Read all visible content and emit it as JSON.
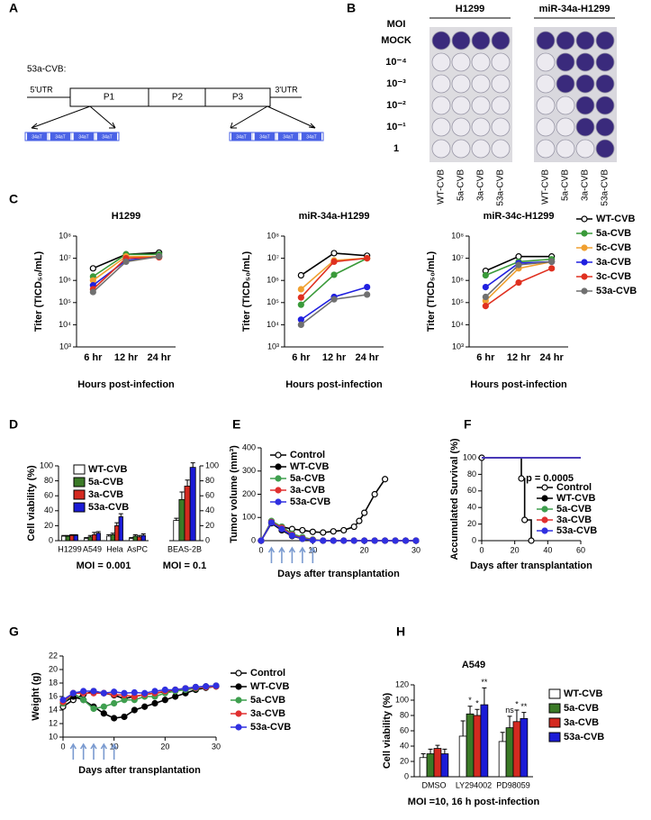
{
  "panel_labels": [
    "A",
    "B",
    "C",
    "D",
    "E",
    "F",
    "G",
    "H"
  ],
  "diagram": {
    "name": "53a-CVB:",
    "utr5": "5'UTR",
    "regions": [
      "P1",
      "P2",
      "P3"
    ],
    "utr3": "3'UTR",
    "cassettes": [
      [
        "34aT",
        "34aT",
        "34aT",
        "34aT"
      ],
      [
        "34aT",
        "34aT",
        "34aT",
        "34aT"
      ]
    ]
  },
  "plates": {
    "row_header": "MOI",
    "rows": [
      "MOCK",
      "10⁻⁴",
      "10⁻³",
      "10⁻²",
      "10⁻¹",
      "1"
    ],
    "panels": [
      {
        "title": "H1299",
        "columns": [
          "WT-CVB",
          "5a-CVB",
          "3a-CVB",
          "53a-CVB"
        ],
        "stained": [
          [
            1,
            1,
            1,
            1
          ],
          [
            0,
            0,
            0,
            0
          ],
          [
            0,
            0,
            0,
            0
          ],
          [
            0,
            0,
            0,
            0
          ],
          [
            0,
            0,
            0,
            0
          ],
          [
            0,
            0,
            0,
            0
          ]
        ]
      },
      {
        "title": "miR-34a-H1299",
        "columns": [
          "WT-CVB",
          "5a-CVB",
          "3a-CVB",
          "53a-CVB"
        ],
        "stained": [
          [
            1,
            1,
            1,
            1
          ],
          [
            0,
            1,
            1,
            1
          ],
          [
            0,
            1,
            1,
            1
          ],
          [
            0,
            0,
            1,
            1
          ],
          [
            0,
            0,
            1,
            1
          ],
          [
            0,
            0,
            0,
            1
          ]
        ]
      }
    ]
  },
  "chart_data": [
    {
      "type": "line",
      "title": "H1299",
      "ylabel": "Titer (TICD₅₀/mL)",
      "xlabel": "Hours post-infection",
      "log": true,
      "categories": [
        "6 hr",
        "12 hr",
        "24 hr"
      ],
      "ylim": [
        1000,
        100000000
      ],
      "yticks": [
        {
          "value": 1000,
          "label": "10³"
        },
        {
          "value": 10000,
          "label": "10⁴"
        },
        {
          "value": 100000,
          "label": "10⁵"
        },
        {
          "value": 1000000,
          "label": "10⁶"
        },
        {
          "value": 10000000,
          "label": "10⁷"
        },
        {
          "value": 100000000,
          "label": "10⁸"
        }
      ],
      "series": [
        {
          "color": "#000000",
          "marker": "open",
          "values": [
            3500000,
            15000000,
            18000000
          ]
        },
        {
          "color": "#3a9a3a",
          "values": [
            1500000,
            15000000,
            15000000
          ]
        },
        {
          "color": "#f0a030",
          "values": [
            1000000,
            12000000,
            12000000
          ]
        },
        {
          "color": "#2020e0",
          "values": [
            600000,
            8000000,
            12000000
          ]
        },
        {
          "color": "#e03020",
          "values": [
            400000,
            10000000,
            11000000
          ]
        },
        {
          "color": "#707070",
          "values": [
            300000,
            7000000,
            12000000
          ]
        }
      ]
    },
    {
      "type": "line",
      "title": "miR-34a-H1299",
      "ylabel": "Titer (TICD₅₀/mL)",
      "xlabel": "Hours post-infection",
      "log": true,
      "categories": [
        "6 hr",
        "12 hr",
        "24 hr"
      ],
      "ylim": [
        1000,
        100000000
      ],
      "yticks": [
        {
          "value": 1000,
          "label": "10³"
        },
        {
          "value": 10000,
          "label": "10⁴"
        },
        {
          "value": 100000,
          "label": "10⁵"
        },
        {
          "value": 1000000,
          "label": "10⁶"
        },
        {
          "value": 10000000,
          "label": "10⁷"
        },
        {
          "value": 100000000,
          "label": "10⁸"
        }
      ],
      "series": [
        {
          "color": "#000000",
          "marker": "open",
          "values": [
            1700000,
            17000000,
            13000000
          ]
        },
        {
          "color": "#3a9a3a",
          "values": [
            80000,
            1800000,
            10000000
          ]
        },
        {
          "color": "#f0a030",
          "values": [
            400000,
            8000000,
            10000000
          ]
        },
        {
          "color": "#2020e0",
          "values": [
            17000,
            180000,
            500000
          ]
        },
        {
          "color": "#e03020",
          "values": [
            170000,
            7000000,
            10000000
          ]
        },
        {
          "color": "#707070",
          "values": [
            10000,
            140000,
            230000
          ]
        }
      ]
    },
    {
      "type": "line",
      "title": "miR-34c-H1299",
      "ylabel": "Titer (TICD₅₀/mL)",
      "xlabel": "Hours post-infection",
      "log": true,
      "categories": [
        "6 hr",
        "12 hr",
        "24 hr"
      ],
      "ylim": [
        1000,
        100000000
      ],
      "yticks": [
        {
          "value": 1000,
          "label": "10³"
        },
        {
          "value": 10000,
          "label": "10⁴"
        },
        {
          "value": 100000,
          "label": "10⁵"
        },
        {
          "value": 1000000,
          "label": "10⁶"
        },
        {
          "value": 10000000,
          "label": "10⁷"
        },
        {
          "value": 100000000,
          "label": "10⁸"
        }
      ],
      "series": [
        {
          "name": "WT-CVB",
          "color": "#000000",
          "marker": "open",
          "values": [
            2700000,
            12000000,
            12000000
          ]
        },
        {
          "name": "5a-CVB",
          "color": "#3a9a3a",
          "values": [
            1700000,
            7000000,
            9000000
          ]
        },
        {
          "name": "5c-CVB",
          "color": "#f0a030",
          "values": [
            120000,
            3500000,
            7000000
          ]
        },
        {
          "name": "3a-CVB",
          "color": "#2020e0",
          "values": [
            500000,
            6000000,
            7000000
          ]
        },
        {
          "name": "3c-CVB",
          "color": "#e03020",
          "values": [
            70000,
            800000,
            3500000
          ]
        },
        {
          "name": "53a-CVB",
          "color": "#707070",
          "values": [
            180000,
            5000000,
            7000000
          ]
        }
      ]
    },
    {
      "type": "bar",
      "ylabel": "Cell viability (%)",
      "xlabel": "MOI = 0.001",
      "categories": [
        "H1299",
        "A549",
        "Hela",
        "AsPC"
      ],
      "ylim": [
        0,
        100
      ],
      "yticks": [
        0,
        20,
        40,
        60,
        80,
        100
      ],
      "series": [
        {
          "name": "WT-CVB",
          "color": "#ffffff",
          "values": [
            6,
            3,
            6,
            3
          ],
          "errors": [
            1,
            1,
            2,
            1
          ]
        },
        {
          "name": "5a-CVB",
          "color": "#3b7a27",
          "values": [
            6,
            5,
            8,
            6
          ],
          "errors": [
            1,
            2,
            2,
            2
          ]
        },
        {
          "name": "3a-CVB",
          "color": "#d42a20",
          "values": [
            7,
            8,
            20,
            5
          ],
          "errors": [
            1,
            3,
            4,
            2
          ]
        },
        {
          "name": "53a-CVB",
          "color": "#1b1bd6",
          "values": [
            7,
            10,
            32,
            7
          ],
          "errors": [
            1,
            2,
            4,
            2
          ]
        }
      ]
    },
    {
      "type": "bar",
      "xlabel": "MOI = 0.1",
      "y_side": "right",
      "categories": [
        "BEAS-2B"
      ],
      "ylim": [
        0,
        100
      ],
      "yticks": [
        0,
        20,
        40,
        60,
        80,
        100
      ],
      "series": [
        {
          "color": "#ffffff",
          "values": [
            27
          ],
          "errors": [
            3
          ]
        },
        {
          "color": "#3b7a27",
          "values": [
            55
          ],
          "errors": [
            10
          ]
        },
        {
          "color": "#d42a20",
          "values": [
            73
          ],
          "errors": [
            8
          ]
        },
        {
          "color": "#1b1bd6",
          "values": [
            98
          ],
          "errors": [
            6
          ]
        }
      ]
    },
    {
      "type": "line",
      "ylabel": "Tumor volume (mm³)",
      "xlabel": "Days after transplantation",
      "xlim": [
        0,
        30
      ],
      "xticks": [
        0,
        10,
        20,
        30
      ],
      "ylim": [
        0,
        400
      ],
      "yticks": [
        0,
        100,
        200,
        300,
        400
      ],
      "dose_days": [
        2,
        4,
        6,
        8,
        10
      ],
      "series": [
        {
          "name": "Control",
          "color": "#000000",
          "marker": "open",
          "x": [
            0,
            2,
            4,
            6,
            8,
            10,
            12,
            14,
            16,
            18,
            19,
            20,
            22,
            24
          ],
          "values": [
            0,
            80,
            60,
            50,
            45,
            38,
            35,
            40,
            45,
            60,
            85,
            120,
            200,
            265
          ]
        },
        {
          "name": "WT-CVB",
          "color": "#000000",
          "x": [
            0,
            2,
            4,
            6,
            8,
            10,
            12,
            14,
            16,
            18,
            20,
            22,
            24,
            26,
            28,
            30
          ],
          "values": [
            0,
            75,
            45,
            20,
            8,
            3,
            0,
            0,
            0,
            0,
            0,
            0,
            0,
            0,
            0,
            0
          ]
        },
        {
          "name": "5a-CVB",
          "color": "#3f9f4f",
          "x": [
            0,
            2,
            4,
            6,
            8,
            10,
            12,
            14,
            16,
            18,
            20,
            22,
            24,
            26,
            28,
            30
          ],
          "values": [
            0,
            85,
            60,
            30,
            15,
            5,
            0,
            0,
            0,
            0,
            0,
            0,
            0,
            0,
            0,
            0
          ]
        },
        {
          "name": "3a-CVB",
          "color": "#e03030",
          "x": [
            0,
            2,
            4,
            6,
            8,
            10,
            12,
            14,
            16,
            18,
            20,
            22,
            24,
            26,
            28,
            30
          ],
          "values": [
            0,
            80,
            55,
            25,
            10,
            3,
            0,
            0,
            0,
            0,
            0,
            0,
            0,
            0,
            0,
            0
          ]
        },
        {
          "name": "53a-CVB",
          "color": "#3030e0",
          "x": [
            0,
            2,
            4,
            6,
            8,
            10,
            12,
            14,
            16,
            18,
            20,
            22,
            24,
            26,
            28,
            30
          ],
          "values": [
            0,
            78,
            50,
            22,
            8,
            2,
            0,
            0,
            0,
            0,
            0,
            0,
            0,
            0,
            0,
            0
          ]
        }
      ]
    },
    {
      "type": "step",
      "ylabel": "Accumulated Survival (%)",
      "xlabel": "Days after transplantation",
      "annotation": "p = 0.0005",
      "xlim": [
        0,
        60
      ],
      "xticks": [
        0,
        20,
        40,
        60
      ],
      "ylim": [
        0,
        100
      ],
      "yticks": [
        0,
        20,
        40,
        60,
        80,
        100
      ],
      "series": [
        {
          "name": "Control",
          "color": "#000000",
          "marker": "open",
          "x": [
            0,
            24,
            26,
            30
          ],
          "values": [
            100,
            75,
            25,
            0
          ]
        },
        {
          "name": "WT-CVB",
          "color": "#000000",
          "x": [
            0,
            60
          ],
          "values": [
            100,
            100
          ]
        },
        {
          "name": "5a-CVB",
          "color": "#3f9f4f",
          "x": [
            0,
            60
          ],
          "values": [
            100,
            100
          ]
        },
        {
          "name": "3a-CVB",
          "color": "#e03030",
          "x": [
            0,
            60
          ],
          "values": [
            100,
            100
          ]
        },
        {
          "name": "53a-CVB",
          "color": "#3030e0",
          "x": [
            0,
            60
          ],
          "values": [
            100,
            100
          ]
        }
      ]
    },
    {
      "type": "line",
      "ylabel": "Weight (g)",
      "xlabel": "Days after transplantation",
      "xlim": [
        0,
        30
      ],
      "xticks": [
        0,
        10,
        20,
        30
      ],
      "ylim": [
        10,
        22
      ],
      "yticks": [
        10,
        12,
        14,
        16,
        18,
        20,
        22
      ],
      "dose_days": [
        2,
        4,
        6,
        8,
        10
      ],
      "x": [
        0,
        2,
        4,
        6,
        8,
        10,
        12,
        14,
        16,
        18,
        20,
        22,
        24,
        26,
        28,
        30
      ],
      "series": [
        {
          "name": "Control",
          "color": "#000000",
          "marker": "open",
          "values": [
            14.5,
            15.5,
            16.3,
            16.8,
            16.5,
            16.2,
            15.7,
            16.0,
            16.3,
            16.5,
            16.7,
            17.0,
            17.2,
            17.4,
            17.5,
            17.6
          ]
        },
        {
          "name": "WT-CVB",
          "color": "#000000",
          "values": [
            15,
            16,
            15.5,
            14.5,
            13.5,
            12.8,
            13,
            14,
            14.5,
            15,
            15.5,
            16,
            16.5,
            17,
            17.3,
            17.5
          ]
        },
        {
          "name": "5a-CVB",
          "color": "#3f9f4f",
          "values": [
            15,
            16.5,
            15.5,
            14.2,
            14.5,
            15,
            15.5,
            15.5,
            16,
            16,
            16.5,
            16.8,
            17,
            17.2,
            17.4,
            17.5
          ]
        },
        {
          "name": "3a-CVB",
          "color": "#e03030",
          "values": [
            15.2,
            16.5,
            16.5,
            16.5,
            16.5,
            16.3,
            16.2,
            16,
            16.3,
            16.5,
            16.8,
            17,
            17.2,
            17.3,
            17.4,
            17.5
          ]
        },
        {
          "name": "53a-CVB",
          "color": "#3030e0",
          "values": [
            15.5,
            16.5,
            16.8,
            16.8,
            16.5,
            16.7,
            16.5,
            16.6,
            16.5,
            16.8,
            17,
            17,
            17.2,
            17.4,
            17.5,
            17.6
          ]
        }
      ]
    },
    {
      "type": "bar",
      "title": "A549",
      "ylabel": "Cell viability (%)",
      "xlabel": "MOI =10, 16 h post-infection",
      "categories": [
        "DMSO",
        "LY294002",
        "PD98059"
      ],
      "ylim": [
        0,
        120
      ],
      "yticks": [
        0,
        20,
        40,
        60,
        80,
        100,
        120
      ],
      "series": [
        {
          "name": "WT-CVB",
          "color": "#ffffff",
          "values": [
            25,
            53,
            46
          ],
          "errors": [
            5,
            20,
            12
          ]
        },
        {
          "name": "5a-CVB",
          "color": "#3b7a27",
          "values": [
            30,
            82,
            64
          ],
          "errors": [
            6,
            10,
            15
          ],
          "annotations": [
            null,
            "*",
            "ns"
          ]
        },
        {
          "name": "3a-CVB",
          "color": "#d42a20",
          "values": [
            37,
            80,
            72
          ],
          "errors": [
            4,
            8,
            15
          ],
          "annotations": [
            null,
            "*",
            "*"
          ]
        },
        {
          "name": "53a-CVB",
          "color": "#1b1bd6",
          "values": [
            30,
            94,
            76
          ],
          "errors": [
            6,
            22,
            8
          ],
          "annotations": [
            null,
            "**",
            "**"
          ]
        }
      ]
    }
  ]
}
